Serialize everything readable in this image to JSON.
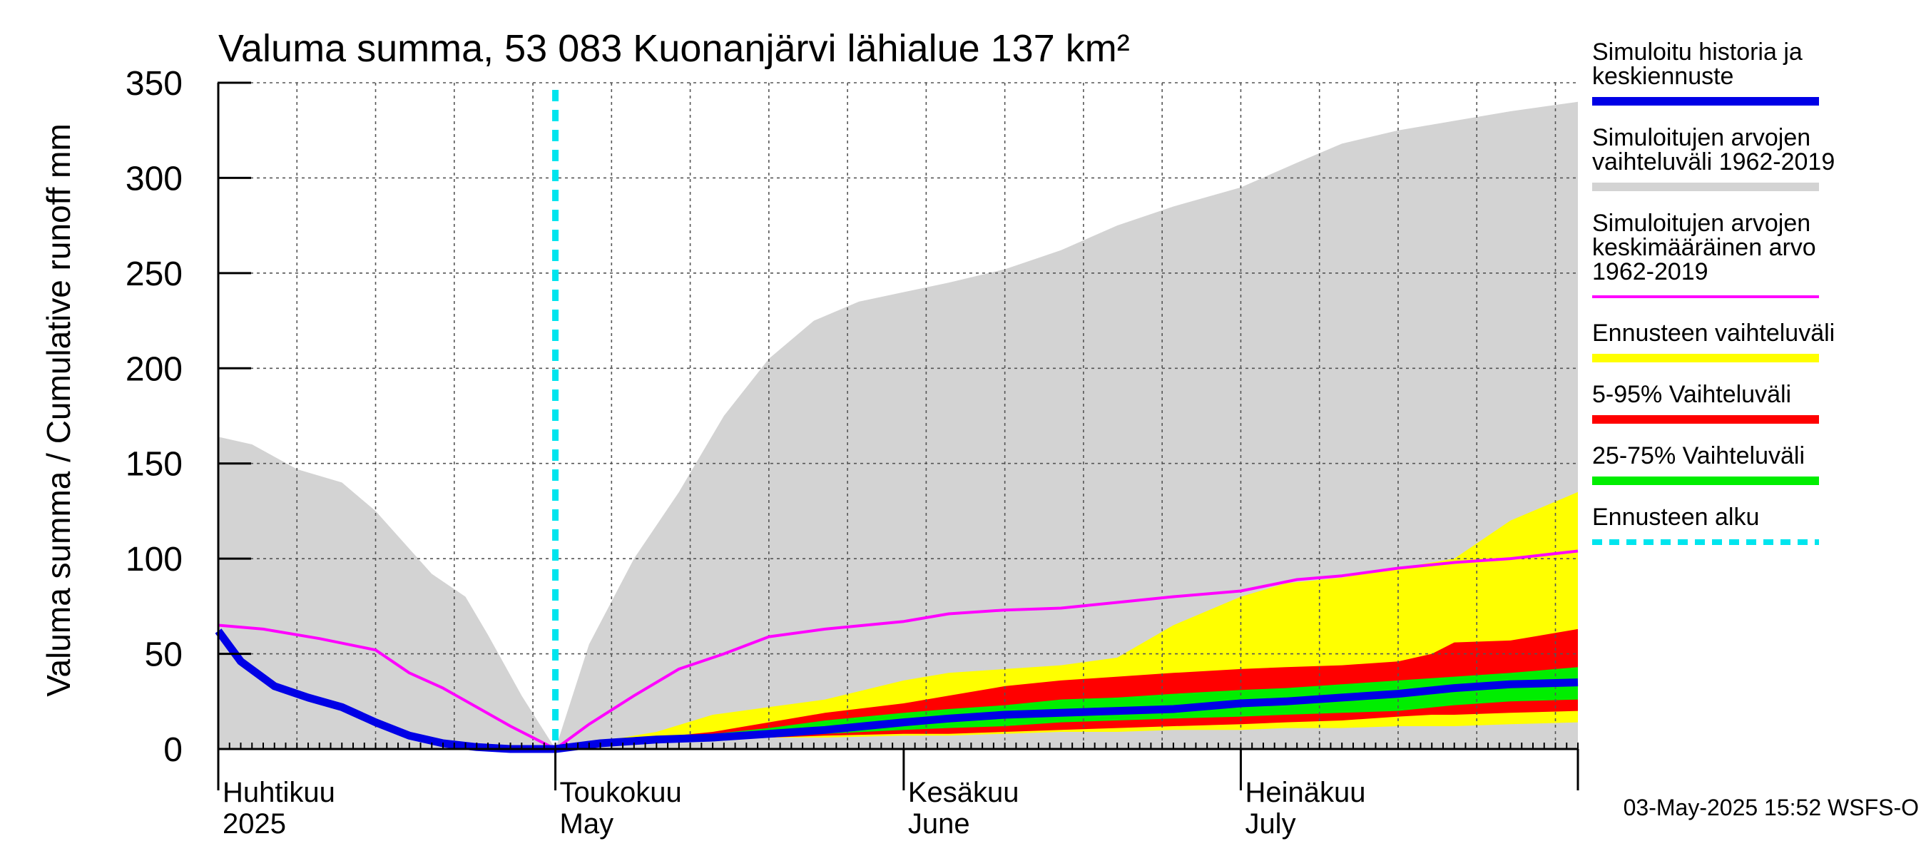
{
  "chart_data": {
    "type": "area",
    "title": "Valuma summa, 53 083 Kuonanjärvi lähialue 137 km²",
    "ylabel": "Valuma summa / Cumulative runoff    mm",
    "ylim": [
      0,
      350
    ],
    "yticks": [
      0,
      50,
      100,
      150,
      200,
      250,
      300,
      350
    ],
    "x_range": [
      "2025-04-01",
      "2025-07-31"
    ],
    "grid": true,
    "legend_position": "right",
    "month_labels": [
      {
        "fi": "Huhtikuu",
        "en": "2025",
        "date": "2025-04-01"
      },
      {
        "fi": "Toukokuu",
        "en": "May",
        "date": "2025-05-01"
      },
      {
        "fi": "Kesäkuu",
        "en": "June",
        "date": "2025-06-01"
      },
      {
        "fi": "Heinäkuu",
        "en": "July",
        "date": "2025-07-01"
      }
    ],
    "forecast_start": "2025-05-01",
    "colors": {
      "history_range": "#d3d3d3",
      "sim_mean": "#ff00ff",
      "sim_forecast": "#0000e6",
      "forecast_range": "#ffff00",
      "range_5_95": "#ff0000",
      "range_25_75": "#00ee00",
      "forecast_start": "#00e5ee",
      "grid": "#555555"
    },
    "legend": [
      {
        "label": "Simuloitu historia ja keskiennuste",
        "lines": [
          "Simuloitu historia ja",
          "keskiennuste"
        ],
        "swatch": "sim_forecast",
        "style": "thick"
      },
      {
        "label": "Simuloitujen arvojen vaihteluväli 1962-2019",
        "lines": [
          "Simuloitujen arvojen",
          "vaihteluväli 1962-2019"
        ],
        "swatch": "history_range",
        "style": "thick"
      },
      {
        "label": "Simuloitujen arvojen keskimääräinen arvo 1962-2019",
        "lines": [
          "Simuloitujen arvojen",
          "keskimääräinen arvo",
          "   1962-2019"
        ],
        "swatch": "sim_mean",
        "style": "thin"
      },
      {
        "label": "Ennusteen vaihteluväli",
        "lines": [
          "Ennusteen vaihteluväli"
        ],
        "swatch": "forecast_range",
        "style": "thick"
      },
      {
        "label": "5-95% Vaihteluväli",
        "lines": [
          "5-95% Vaihteluväli"
        ],
        "swatch": "range_5_95",
        "style": "thick"
      },
      {
        "label": "25-75% Vaihteluväli",
        "lines": [
          "25-75% Vaihteluväli"
        ],
        "swatch": "range_25_75",
        "style": "thick"
      },
      {
        "label": "Ennusteen alku",
        "lines": [
          "Ennusteen alku"
        ],
        "swatch": "forecast_start",
        "style": "dashed"
      }
    ],
    "series": [
      {
        "name": "Simuloitujen arvojen vaihteluväli 1962-2019",
        "kind": "band",
        "x": [
          "2025-04-01",
          "2025-04-04",
          "2025-04-08",
          "2025-04-12",
          "2025-04-15",
          "2025-04-20",
          "2025-04-23",
          "2025-04-25",
          "2025-04-28",
          "2025-05-01",
          "2025-05-04",
          "2025-05-08",
          "2025-05-12",
          "2025-05-16",
          "2025-05-20",
          "2025-05-24",
          "2025-05-28",
          "2025-06-01",
          "2025-06-05",
          "2025-06-10",
          "2025-06-15",
          "2025-06-20",
          "2025-06-25",
          "2025-07-01",
          "2025-07-06",
          "2025-07-10",
          "2025-07-15",
          "2025-07-20",
          "2025-07-25",
          "2025-07-31"
        ],
        "low": [
          0,
          0,
          0,
          0,
          0,
          0,
          0,
          0,
          0,
          0,
          0,
          0,
          0,
          0,
          0,
          0,
          0,
          0,
          0,
          0,
          0,
          0,
          0,
          0,
          0,
          0,
          0,
          0,
          0,
          0
        ],
        "high": [
          164,
          160,
          147,
          140,
          125,
          92,
          80,
          60,
          28,
          0,
          55,
          100,
          135,
          175,
          205,
          225,
          235,
          240,
          245,
          252,
          262,
          275,
          285,
          295,
          308,
          318,
          325,
          330,
          335,
          340
        ]
      },
      {
        "name": "Ennusteen vaihteluväli",
        "kind": "band",
        "x": [
          "2025-05-01",
          "2025-05-05",
          "2025-05-10",
          "2025-05-15",
          "2025-05-20",
          "2025-05-25",
          "2025-06-01",
          "2025-06-05",
          "2025-06-10",
          "2025-06-15",
          "2025-06-20",
          "2025-06-25",
          "2025-07-01",
          "2025-07-05",
          "2025-07-10",
          "2025-07-15",
          "2025-07-20",
          "2025-07-25",
          "2025-07-31"
        ],
        "low": [
          0,
          2,
          4,
          5,
          6,
          6,
          7,
          7,
          8,
          9,
          9,
          10,
          10,
          11,
          11,
          12,
          12,
          13,
          14
        ],
        "high": [
          0,
          4,
          9,
          18,
          22,
          26,
          36,
          40,
          42,
          44,
          48,
          65,
          80,
          87,
          90,
          95,
          100,
          120,
          135
        ]
      },
      {
        "name": "5-95% Vaihteluväli",
        "kind": "band",
        "x": [
          "2025-05-01",
          "2025-05-05",
          "2025-05-10",
          "2025-05-15",
          "2025-05-20",
          "2025-05-25",
          "2025-06-01",
          "2025-06-05",
          "2025-06-10",
          "2025-06-15",
          "2025-06-20",
          "2025-06-25",
          "2025-07-01",
          "2025-07-05",
          "2025-07-10",
          "2025-07-15",
          "2025-07-18",
          "2025-07-20",
          "2025-07-25",
          "2025-07-31"
        ],
        "low": [
          0,
          2,
          4,
          5,
          6,
          7,
          8,
          8,
          9,
          10,
          11,
          12,
          13,
          14,
          15,
          17,
          18,
          18,
          19,
          20
        ],
        "high": [
          0,
          4,
          6,
          9,
          14,
          19,
          24,
          28,
          33,
          36,
          38,
          40,
          42,
          43,
          44,
          46,
          50,
          56,
          57,
          63
        ]
      },
      {
        "name": "25-75% Vaihteluväli",
        "kind": "band",
        "x": [
          "2025-05-01",
          "2025-05-05",
          "2025-05-10",
          "2025-05-15",
          "2025-05-20",
          "2025-05-25",
          "2025-06-01",
          "2025-06-05",
          "2025-06-10",
          "2025-06-15",
          "2025-06-20",
          "2025-06-25",
          "2025-07-01",
          "2025-07-05",
          "2025-07-10",
          "2025-07-15",
          "2025-07-20",
          "2025-07-25",
          "2025-07-31"
        ],
        "low": [
          0,
          3,
          5,
          6,
          7,
          8,
          10,
          11,
          12,
          14,
          15,
          16,
          17,
          18,
          19,
          20,
          23,
          25,
          26
        ],
        "high": [
          0,
          3.5,
          6,
          8,
          11,
          15,
          19,
          21,
          23,
          26,
          27,
          29,
          31,
          32,
          34,
          36,
          38,
          40,
          43
        ]
      },
      {
        "name": "Simuloitujen arvojen keskimääräinen arvo 1962-2019",
        "kind": "line",
        "x": [
          "2025-04-01",
          "2025-04-05",
          "2025-04-10",
          "2025-04-15",
          "2025-04-18",
          "2025-04-21",
          "2025-04-24",
          "2025-04-27",
          "2025-05-01",
          "2025-05-04",
          "2025-05-08",
          "2025-05-12",
          "2025-05-16",
          "2025-05-20",
          "2025-05-25",
          "2025-06-01",
          "2025-06-05",
          "2025-06-10",
          "2025-06-15",
          "2025-06-20",
          "2025-06-25",
          "2025-07-01",
          "2025-07-06",
          "2025-07-10",
          "2025-07-15",
          "2025-07-20",
          "2025-07-25",
          "2025-07-31"
        ],
        "y": [
          65,
          63,
          58,
          52,
          40,
          32,
          22,
          12,
          0,
          13,
          28,
          42,
          50,
          59,
          63,
          67,
          71,
          73,
          74,
          77,
          80,
          83,
          89,
          91,
          95,
          98,
          100,
          104
        ]
      },
      {
        "name": "Simuloitu historia ja keskiennuste",
        "kind": "line",
        "x": [
          "2025-04-01",
          "2025-04-03",
          "2025-04-06",
          "2025-04-09",
          "2025-04-12",
          "2025-04-15",
          "2025-04-18",
          "2025-04-21",
          "2025-04-24",
          "2025-04-27",
          "2025-05-01",
          "2025-05-05",
          "2025-05-10",
          "2025-05-15",
          "2025-05-20",
          "2025-05-25",
          "2025-06-01",
          "2025-06-05",
          "2025-06-10",
          "2025-06-15",
          "2025-06-20",
          "2025-06-25",
          "2025-07-01",
          "2025-07-05",
          "2025-07-10",
          "2025-07-15",
          "2025-07-20",
          "2025-07-25",
          "2025-07-31"
        ],
        "y": [
          62,
          46,
          33,
          27,
          22,
          14,
          7,
          3,
          1,
          0,
          0,
          3,
          5,
          6,
          8,
          10,
          14,
          16,
          18,
          19,
          20,
          21,
          24,
          25,
          27,
          29,
          32,
          34,
          35
        ]
      }
    ]
  },
  "footer": {
    "timestamp": "03-May-2025 15:52 WSFS-O"
  }
}
